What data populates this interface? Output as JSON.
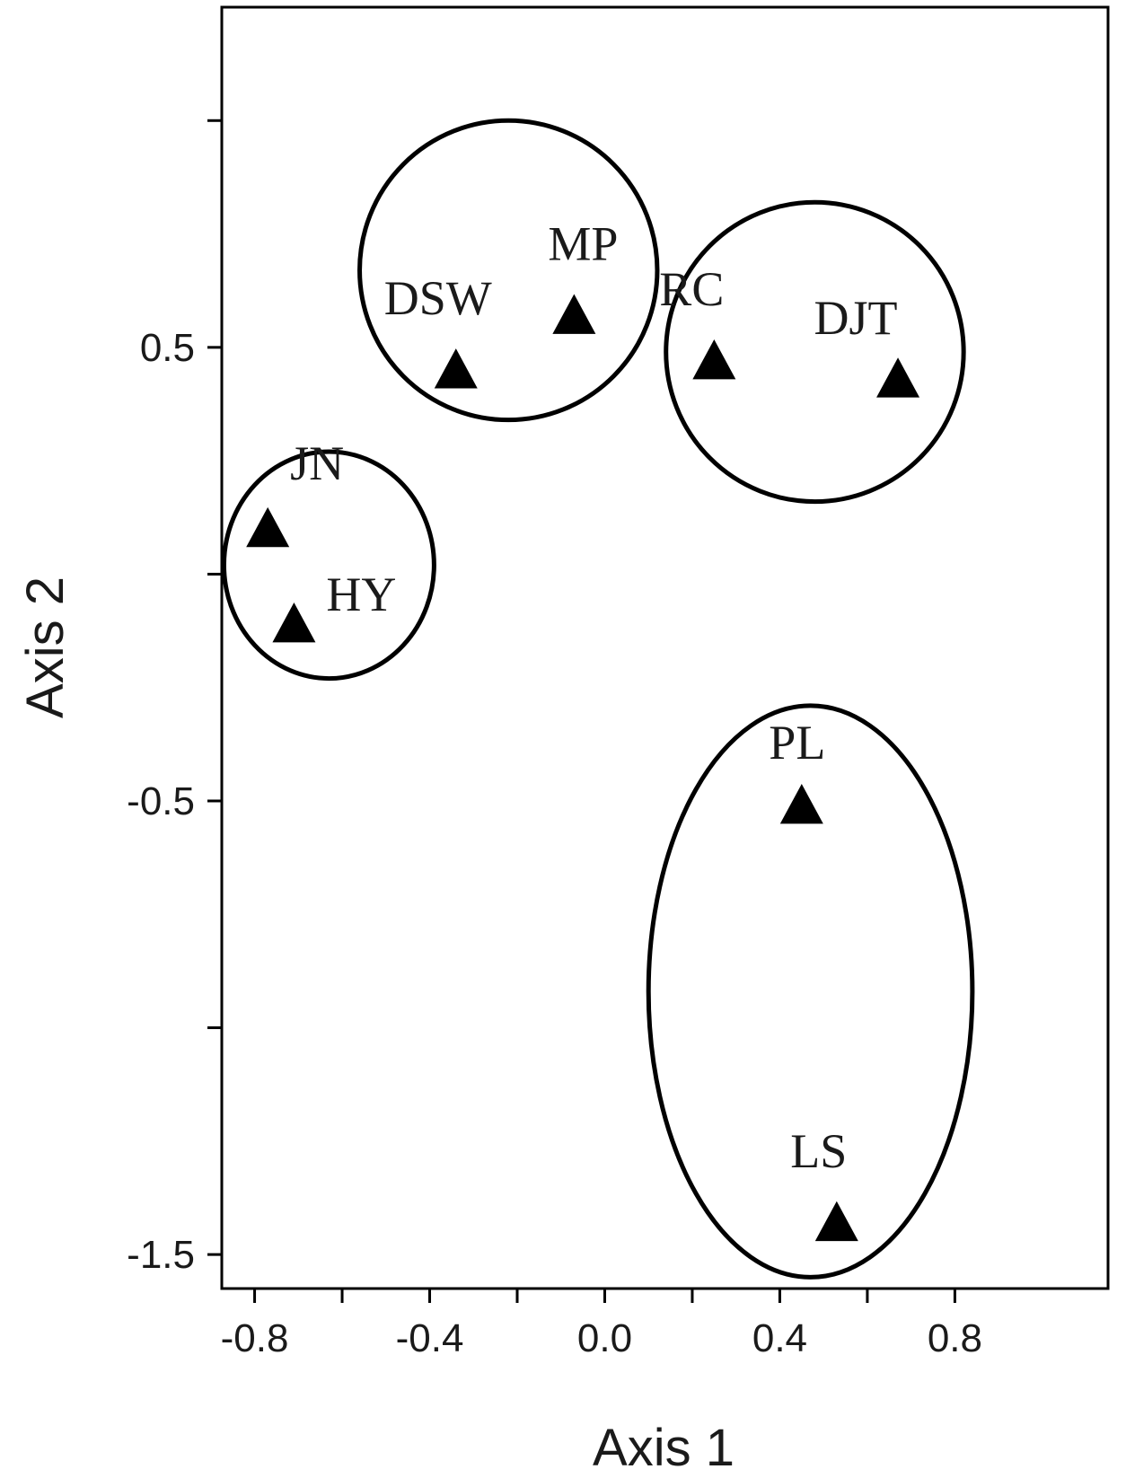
{
  "chart_data": {
    "type": "scatter",
    "xlabel": "Axis 1",
    "ylabel": "Axis 2",
    "xlim": [
      -0.875,
      1.15
    ],
    "ylim": [
      -1.575,
      1.25
    ],
    "x_ticks": [
      -0.8,
      -0.6,
      -0.4,
      -0.2,
      0.0,
      0.2,
      0.4,
      0.6,
      0.8
    ],
    "x_tick_labels": [
      "-0.8",
      "",
      "-0.4",
      "",
      "0.0",
      "",
      "0.4",
      "",
      "0.8"
    ],
    "y_ticks": [
      1.0,
      0.5,
      0.0,
      -0.5,
      -1.0,
      -1.5
    ],
    "y_tick_labels": [
      "",
      "0.5",
      "",
      "-0.5",
      "",
      "-1.5"
    ],
    "grid": false,
    "marker": "filled-triangle",
    "color": "#000000",
    "points": [
      {
        "label": "MP",
        "x": -0.07,
        "y": 0.57
      },
      {
        "label": "DSW",
        "x": -0.34,
        "y": 0.45
      },
      {
        "label": "RC",
        "x": 0.25,
        "y": 0.47
      },
      {
        "label": "DJT",
        "x": 0.67,
        "y": 0.43
      },
      {
        "label": "JN",
        "x": -0.77,
        "y": 0.1
      },
      {
        "label": "HY",
        "x": -0.71,
        "y": -0.11
      },
      {
        "label": "PL",
        "x": 0.45,
        "y": -0.51
      },
      {
        "label": "LS",
        "x": 0.53,
        "y": -1.43
      }
    ],
    "clusters": [
      {
        "members": [
          "DSW",
          "MP"
        ],
        "cx": -0.22,
        "cy": 0.67,
        "rx": 0.34,
        "ry": 0.33
      },
      {
        "members": [
          "RC",
          "DJT"
        ],
        "cx": 0.48,
        "cy": 0.49,
        "rx": 0.34,
        "ry": 0.33
      },
      {
        "members": [
          "JN",
          "HY"
        ],
        "cx": -0.63,
        "cy": 0.02,
        "rx": 0.24,
        "ry": 0.25
      },
      {
        "members": [
          "PL",
          "LS"
        ],
        "cx": 0.47,
        "cy": -0.92,
        "rx": 0.37,
        "ry": 0.63
      }
    ]
  }
}
